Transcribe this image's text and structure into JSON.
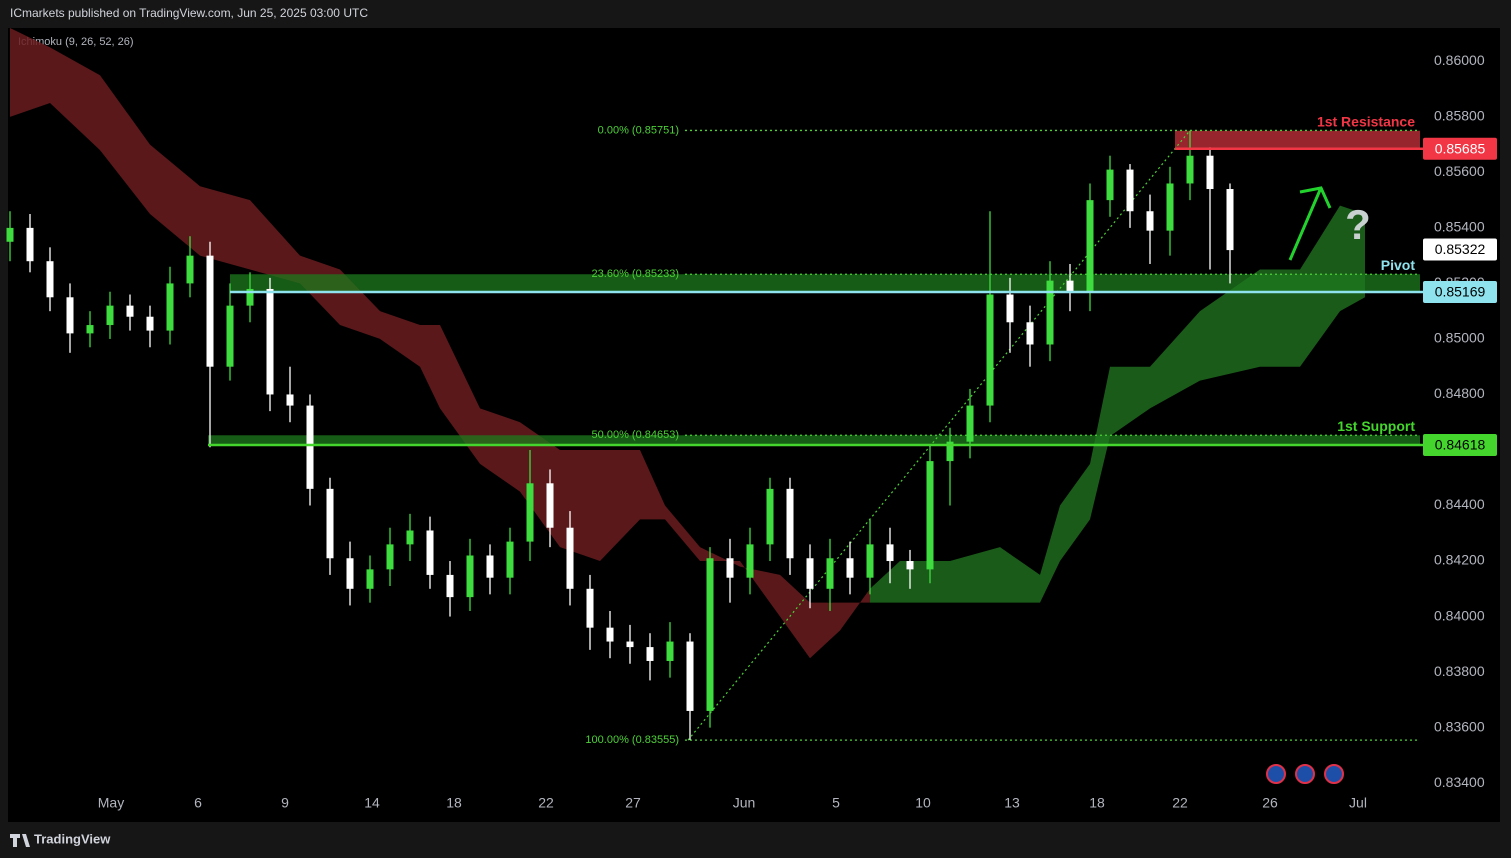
{
  "chart_data": {
    "type": "candlestick",
    "title": "ICmarkets published on TradingView.com, Jun 25, 2025 03:00 UTC",
    "indicator_label": "Ichimoku (9, 26, 52, 26)",
    "footer": "TradingView",
    "up_color": "#3fdc3f",
    "down_color": "#ffffff",
    "xlim": [
      0,
      141
    ],
    "ylim": [
      0.8326,
      0.8612
    ],
    "grid": false,
    "xticks": [
      {
        "value": 10.1,
        "label": "May"
      },
      {
        "value": 18.8,
        "label": "6"
      },
      {
        "value": 27.5,
        "label": "9"
      },
      {
        "value": 36.2,
        "label": "14"
      },
      {
        "value": 44.4,
        "label": "18"
      },
      {
        "value": 53.6,
        "label": "22"
      },
      {
        "value": 62.3,
        "label": "27"
      },
      {
        "value": 73.4,
        "label": "Jun"
      },
      {
        "value": 82.6,
        "label": "5"
      },
      {
        "value": 91.3,
        "label": "10"
      },
      {
        "value": 100.2,
        "label": "13"
      },
      {
        "value": 108.7,
        "label": "18"
      },
      {
        "value": 117,
        "label": "22"
      },
      {
        "value": 126,
        "label": "26"
      },
      {
        "value": 134.8,
        "label": "Jul"
      }
    ],
    "yticks": [
      {
        "value": 0.834,
        "label": "0.83400"
      },
      {
        "value": 0.836,
        "label": "0.83600"
      },
      {
        "value": 0.838,
        "label": "0.83800"
      },
      {
        "value": 0.84,
        "label": "0.84000"
      },
      {
        "value": 0.842,
        "label": "0.84200"
      },
      {
        "value": 0.844,
        "label": "0.84400"
      },
      {
        "value": 0.846,
        "label": "0.84600"
      },
      {
        "value": 0.848,
        "label": "0.84800"
      },
      {
        "value": 0.85,
        "label": "0.85000"
      },
      {
        "value": 0.852,
        "label": "0.85200"
      },
      {
        "value": 0.854,
        "label": "0.85400"
      },
      {
        "value": 0.856,
        "label": "0.85600"
      },
      {
        "value": 0.858,
        "label": "0.85800"
      },
      {
        "value": 0.86,
        "label": "0.86000"
      }
    ],
    "x": [
      0,
      2,
      4,
      6,
      8,
      10,
      12,
      14,
      16,
      18,
      20,
      22,
      24,
      26,
      28,
      30,
      32,
      34,
      36,
      38,
      40,
      42,
      44,
      46,
      48,
      50,
      52,
      54,
      56,
      58,
      60,
      62,
      64,
      66,
      68,
      70,
      72,
      74,
      76,
      78,
      80,
      82,
      84,
      86,
      88,
      90,
      92,
      94,
      96,
      98,
      100,
      102,
      104,
      106,
      108,
      110,
      112,
      114,
      116,
      118,
      120,
      122
    ],
    "open": [
      0.8535,
      0.854,
      0.8528,
      0.8515,
      0.8502,
      0.8505,
      0.8512,
      0.8508,
      0.8503,
      0.852,
      0.853,
      0.849,
      0.8512,
      0.8518,
      0.848,
      0.8476,
      0.8446,
      0.8421,
      0.841,
      0.8417,
      0.8426,
      0.8431,
      0.8415,
      0.8407,
      0.8422,
      0.8414,
      0.8427,
      0.8448,
      0.8432,
      0.841,
      0.8396,
      0.8391,
      0.8389,
      0.8384,
      0.8391,
      0.8366,
      0.8421,
      0.8414,
      0.8426,
      0.8446,
      0.8421,
      0.841,
      0.8421,
      0.8414,
      0.8426,
      0.842,
      0.8417,
      0.8456,
      0.8463,
      0.8476,
      0.8516,
      0.8506,
      0.8498,
      0.8521,
      0.8517,
      0.855,
      0.8561,
      0.8546,
      0.8539,
      0.8556,
      0.8566,
      0.8554
    ],
    "high": [
      0.8546,
      0.8545,
      0.8533,
      0.852,
      0.851,
      0.8517,
      0.8516,
      0.8512,
      0.8526,
      0.8537,
      0.8535,
      0.852,
      0.8524,
      0.8522,
      0.849,
      0.848,
      0.845,
      0.8427,
      0.8422,
      0.8432,
      0.8437,
      0.8436,
      0.842,
      0.8428,
      0.8426,
      0.8432,
      0.846,
      0.8453,
      0.8438,
      0.8415,
      0.8402,
      0.8397,
      0.8394,
      0.8398,
      0.8394,
      0.8425,
      0.8428,
      0.8432,
      0.845,
      0.845,
      0.8426,
      0.8428,
      0.8427,
      0.8435,
      0.8432,
      0.8424,
      0.8462,
      0.8468,
      0.8482,
      0.8546,
      0.8522,
      0.8512,
      0.8528,
      0.8527,
      0.8556,
      0.8566,
      0.8563,
      0.8552,
      0.8562,
      0.8575,
      0.8569,
      0.8556
    ],
    "low": [
      0.8528,
      0.8524,
      0.851,
      0.8495,
      0.8497,
      0.85,
      0.8503,
      0.8497,
      0.8498,
      0.8515,
      0.8461,
      0.8485,
      0.8506,
      0.8474,
      0.847,
      0.844,
      0.8415,
      0.8404,
      0.8405,
      0.8411,
      0.842,
      0.841,
      0.84,
      0.8402,
      0.8408,
      0.8408,
      0.842,
      0.8425,
      0.8404,
      0.8388,
      0.8385,
      0.8383,
      0.8377,
      0.8378,
      0.83555,
      0.836,
      0.8405,
      0.8408,
      0.842,
      0.8415,
      0.8403,
      0.8402,
      0.8408,
      0.8408,
      0.8412,
      0.841,
      0.8412,
      0.844,
      0.8457,
      0.847,
      0.8495,
      0.849,
      0.8492,
      0.851,
      0.851,
      0.8544,
      0.854,
      0.8527,
      0.853,
      0.855,
      0.8525,
      0.852
    ],
    "close": [
      0.854,
      0.8528,
      0.8515,
      0.8502,
      0.8505,
      0.8512,
      0.8508,
      0.8503,
      0.852,
      0.853,
      0.849,
      0.8512,
      0.8518,
      0.848,
      0.8476,
      0.8446,
      0.8421,
      0.841,
      0.8417,
      0.8426,
      0.8431,
      0.8415,
      0.8407,
      0.8422,
      0.8414,
      0.8427,
      0.8448,
      0.8432,
      0.841,
      0.8396,
      0.8391,
      0.8389,
      0.8384,
      0.8391,
      0.8366,
      0.8421,
      0.8414,
      0.8426,
      0.8446,
      0.8421,
      0.841,
      0.8421,
      0.8414,
      0.8426,
      0.842,
      0.8417,
      0.8456,
      0.8463,
      0.8476,
      0.8516,
      0.8506,
      0.8498,
      0.8521,
      0.8517,
      0.855,
      0.8561,
      0.8546,
      0.8539,
      0.8556,
      0.8566,
      0.8554,
      0.8532
    ],
    "cloud": {
      "bull_color": "#1f6b1f",
      "bear_color": "#6a1c20",
      "x": [
        0,
        4,
        9,
        14,
        19,
        24,
        29,
        33,
        37,
        41,
        43,
        47,
        51,
        55,
        59,
        63,
        65.5,
        69,
        73,
        77,
        80,
        83,
        86,
        89,
        94,
        99,
        103,
        105,
        108,
        110,
        114,
        119,
        125,
        129,
        133,
        135.5
      ],
      "span_a": [
        0.858,
        0.8585,
        0.8568,
        0.8545,
        0.853,
        0.8525,
        0.852,
        0.8505,
        0.85,
        0.849,
        0.8475,
        0.8455,
        0.8445,
        0.8425,
        0.842,
        0.8435,
        0.8435,
        0.842,
        0.842,
        0.84,
        0.8385,
        0.8395,
        0.841,
        0.842,
        0.842,
        0.8425,
        0.8415,
        0.844,
        0.8455,
        0.849,
        0.849,
        0.851,
        0.8525,
        0.8525,
        0.8548,
        0.8545
      ],
      "span_b": [
        0.8612,
        0.8605,
        0.8595,
        0.857,
        0.8555,
        0.855,
        0.853,
        0.8525,
        0.851,
        0.8505,
        0.8505,
        0.8475,
        0.847,
        0.846,
        0.846,
        0.846,
        0.844,
        0.8425,
        0.8418,
        0.8415,
        0.8405,
        0.8405,
        0.8405,
        0.8405,
        0.8405,
        0.8405,
        0.8405,
        0.842,
        0.8435,
        0.8465,
        0.8475,
        0.8485,
        0.849,
        0.849,
        0.851,
        0.8515
      ]
    },
    "levels": [
      {
        "name": "1st Resistance",
        "value": 0.85685,
        "band": [
          0.85685,
          0.8575
        ],
        "x_start": 116.5,
        "color": "#f23645",
        "band_color": "#c8323c"
      },
      {
        "name": "Pivot",
        "value": 0.85169,
        "band": [
          0.85169,
          0.85233
        ],
        "x_start": 22,
        "color": "#8fe3ee",
        "band_color": "#1d7a1d"
      },
      {
        "name": "1st Support",
        "value": 0.84618,
        "band": [
          0.84618,
          0.84653
        ],
        "x_start": 19.8,
        "color": "#44d62c",
        "band_color": "#1d7a1d"
      }
    ],
    "last_price": 0.85322,
    "fibonacci": {
      "color": "#4cd137",
      "x_start": 67.5,
      "trend_x": [
        67.8,
        118
      ],
      "levels": [
        {
          "label": "0.00% (0.85751)",
          "value": 0.85751
        },
        {
          "label": "23.60% (0.85233)",
          "value": 0.85233
        },
        {
          "label": "50.00% (0.84653)",
          "value": 0.84653
        },
        {
          "label": "100.00% (0.83555)",
          "value": 0.83555
        }
      ]
    },
    "annotation": "?"
  }
}
